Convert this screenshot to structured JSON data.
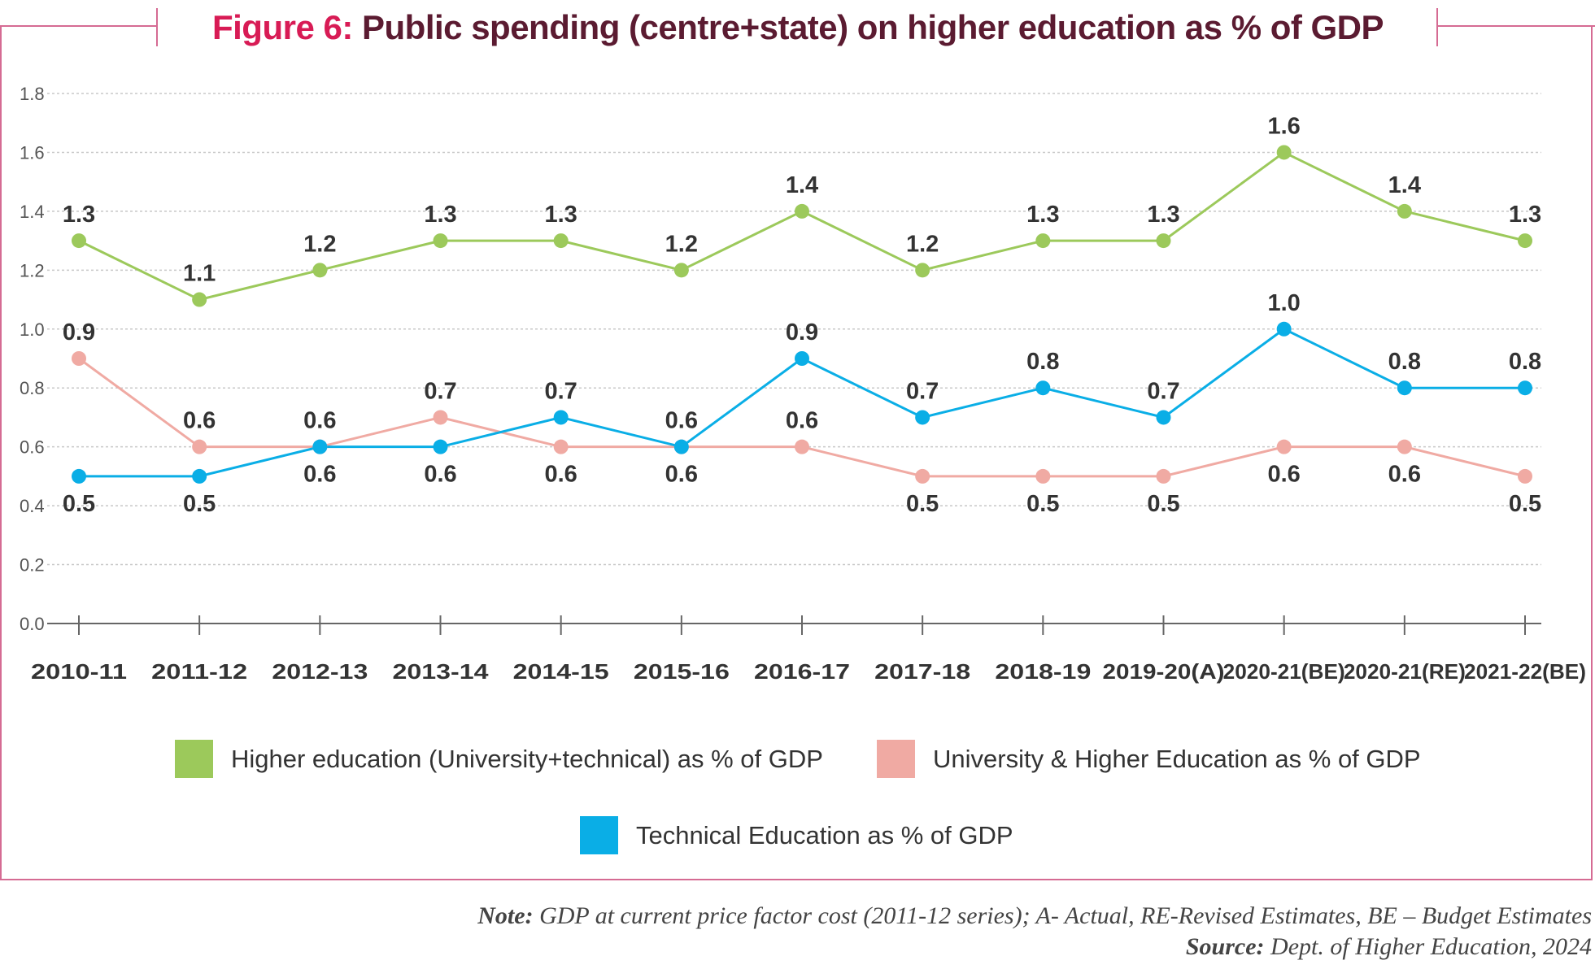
{
  "title": {
    "prefix": "Figure 6:",
    "text": "Public spending (centre+state) on higher education as % of GDP"
  },
  "chart_data": {
    "type": "line",
    "title": "Figure 6: Public spending (centre+state) on higher education as % of GDP",
    "categories": [
      "2010-11",
      "2011-12",
      "2012-13",
      "2013-14",
      "2014-15",
      "2015-16",
      "2016-17",
      "2017-18",
      "2018-19",
      "2019-20(A)",
      "2020-21(BE)",
      "2020-21(RE)",
      "2021-22(BE)"
    ],
    "ylim": [
      0,
      1.8
    ],
    "yticks": [
      "0.0",
      "0.2",
      "0.4",
      "0.6",
      "0.8",
      "1.0",
      "1.2",
      "1.4",
      "1.6",
      "1.8"
    ],
    "grid": true,
    "legend_position": "bottom",
    "series": [
      {
        "name": "Higher education (University+technical) as % of GDP",
        "color": "#9cc95b",
        "values": [
          1.3,
          1.1,
          1.2,
          1.3,
          1.3,
          1.2,
          1.4,
          1.2,
          1.3,
          1.3,
          1.6,
          1.4,
          1.3
        ]
      },
      {
        "name": "University & Higher Education as % of GDP",
        "color": "#f0aaa3",
        "values": [
          0.9,
          0.6,
          0.6,
          0.7,
          0.6,
          0.6,
          0.6,
          0.5,
          0.5,
          0.5,
          0.6,
          0.6,
          0.5
        ]
      },
      {
        "name": "Technical Education as % of GDP",
        "color": "#0aaee6",
        "values": [
          0.5,
          0.5,
          0.6,
          0.6,
          0.7,
          0.6,
          0.9,
          0.7,
          0.8,
          0.7,
          1.0,
          0.8,
          0.8
        ]
      }
    ]
  },
  "note": {
    "label": "Note:",
    "text": "GDP at current price factor cost (2011-12 series); A- Actual, RE-Revised Estimates, BE – Budget Estimates"
  },
  "source": {
    "label": "Source:",
    "text": "Dept. of Higher Education, 2024"
  }
}
